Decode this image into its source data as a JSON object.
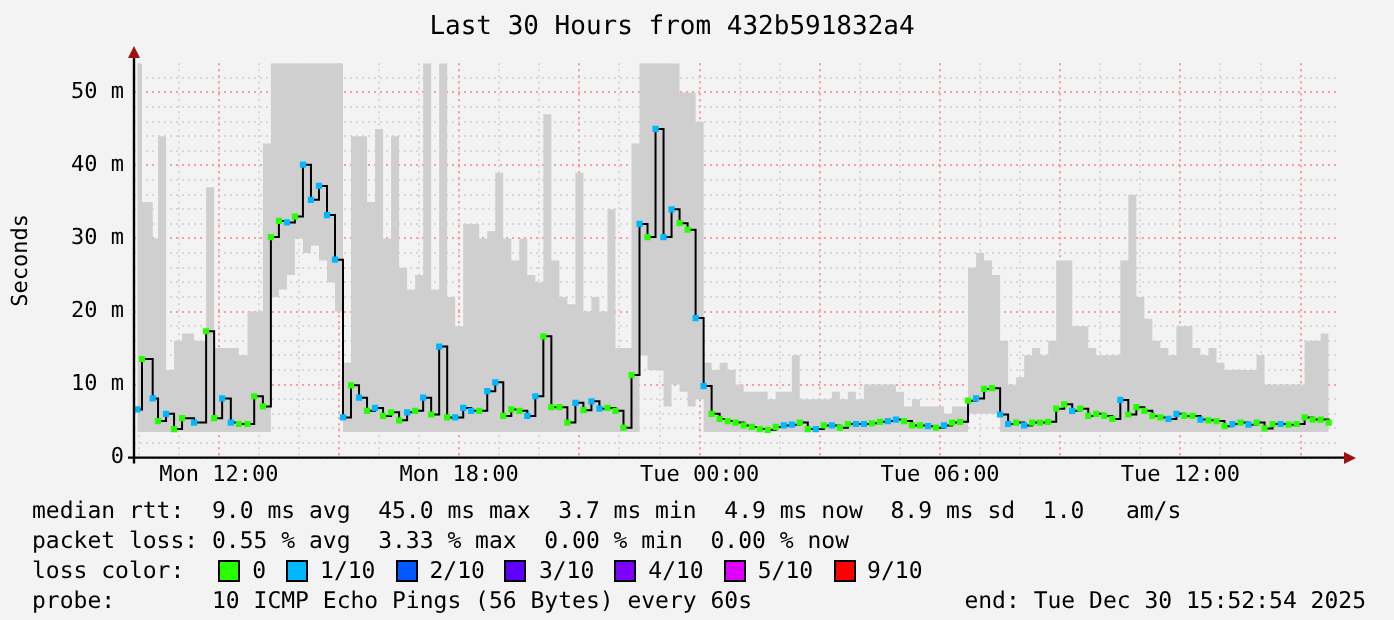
{
  "chart_data": {
    "type": "step",
    "title": "Last 30 Hours from 432b591832a4",
    "ylabel": "Seconds",
    "legend_title": "loss color:",
    "legend": "bottom",
    "grid": true,
    "marker": "square",
    "xlim": [
      "2025-12-29T09:53",
      "2025-12-30T15:53"
    ],
    "xticks": [
      {
        "value": "2025-12-29T10:00",
        "label": null
      },
      {
        "value": "2025-12-29T11:00",
        "label": null
      },
      {
        "value": "2025-12-29T12:00",
        "label": "Mon 12:00"
      },
      {
        "value": "2025-12-29T13:00",
        "label": null
      },
      {
        "value": "2025-12-29T14:00",
        "label": null
      },
      {
        "value": "2025-12-29T15:00",
        "label": null
      },
      {
        "value": "2025-12-29T16:00",
        "label": null
      },
      {
        "value": "2025-12-29T17:00",
        "label": null
      },
      {
        "value": "2025-12-29T18:00",
        "label": "Mon 18:00"
      },
      {
        "value": "2025-12-29T19:00",
        "label": null
      },
      {
        "value": "2025-12-29T20:00",
        "label": null
      },
      {
        "value": "2025-12-29T21:00",
        "label": null
      },
      {
        "value": "2025-12-29T22:00",
        "label": null
      },
      {
        "value": "2025-12-29T23:00",
        "label": null
      },
      {
        "value": "2025-12-30T00:00",
        "label": "Tue 00:00"
      },
      {
        "value": "2025-12-30T01:00",
        "label": null
      },
      {
        "value": "2025-12-30T02:00",
        "label": null
      },
      {
        "value": "2025-12-30T03:00",
        "label": null
      },
      {
        "value": "2025-12-30T04:00",
        "label": null
      },
      {
        "value": "2025-12-30T05:00",
        "label": null
      },
      {
        "value": "2025-12-30T06:00",
        "label": "Tue 06:00"
      },
      {
        "value": "2025-12-30T07:00",
        "label": null
      },
      {
        "value": "2025-12-30T08:00",
        "label": null
      },
      {
        "value": "2025-12-30T09:00",
        "label": null
      },
      {
        "value": "2025-12-30T10:00",
        "label": null
      },
      {
        "value": "2025-12-30T11:00",
        "label": null
      },
      {
        "value": "2025-12-30T12:00",
        "label": "Tue 12:00"
      },
      {
        "value": "2025-12-30T13:00",
        "label": null
      },
      {
        "value": "2025-12-30T14:00",
        "label": null
      },
      {
        "value": "2025-12-30T15:00",
        "label": null
      }
    ],
    "ylim": [
      0,
      54
    ],
    "yticks": [
      {
        "value": 0,
        "label": "0"
      },
      {
        "value": 2,
        "label": null
      },
      {
        "value": 4,
        "label": null
      },
      {
        "value": 6,
        "label": null
      },
      {
        "value": 8,
        "label": null
      },
      {
        "value": 10,
        "label": "10 m"
      },
      {
        "value": 12,
        "label": null
      },
      {
        "value": 14,
        "label": null
      },
      {
        "value": 16,
        "label": null
      },
      {
        "value": 18,
        "label": null
      },
      {
        "value": 20,
        "label": "20 m"
      },
      {
        "value": 22,
        "label": null
      },
      {
        "value": 24,
        "label": null
      },
      {
        "value": 26,
        "label": null
      },
      {
        "value": 28,
        "label": null
      },
      {
        "value": 30,
        "label": "30 m"
      },
      {
        "value": 32,
        "label": null
      },
      {
        "value": 34,
        "label": null
      },
      {
        "value": 36,
        "label": null
      },
      {
        "value": 38,
        "label": null
      },
      {
        "value": 40,
        "label": "40 m"
      },
      {
        "value": 42,
        "label": null
      },
      {
        "value": 44,
        "label": null
      },
      {
        "value": 46,
        "label": null
      },
      {
        "value": 48,
        "label": null
      },
      {
        "value": 50,
        "label": "50 m"
      },
      {
        "value": 52,
        "label": null
      }
    ],
    "annotations": [
      "median rtt:  9.0 ms avg  45.0 ms max  3.7 ms min  4.9 ms now  8.9 ms sd  1.0   am/s",
      "packet loss: 0.55 % avg  3.33 % max  0.00 % min  0.00 % now",
      "probe:       10 ICMP Echo Pings (56 Bytes) every 60s",
      "end: Tue Dec 30 15:52:54 2025"
    ],
    "series": [
      {
        "color": "#000000",
        "x": [
          "2025-12-29T09:58",
          "2025-12-29T10:05",
          "2025-12-29T10:21",
          "2025-12-29T10:29",
          "2025-12-29T10:41",
          "2025-12-29T10:53",
          "2025-12-29T11:05",
          "2025-12-29T11:23",
          "2025-12-29T11:41",
          "2025-12-29T11:53",
          "2025-12-29T12:05",
          "2025-12-29T12:18",
          "2025-12-29T12:30",
          "2025-12-29T12:43",
          "2025-12-29T12:53",
          "2025-12-29T13:06",
          "2025-12-29T13:18",
          "2025-12-29T13:30",
          "2025-12-29T13:42",
          "2025-12-29T13:54",
          "2025-12-29T14:06",
          "2025-12-29T14:18",
          "2025-12-29T14:30",
          "2025-12-29T14:42",
          "2025-12-29T14:54",
          "2025-12-29T15:06",
          "2025-12-29T15:18",
          "2025-12-29T15:30",
          "2025-12-29T15:42",
          "2025-12-29T15:54",
          "2025-12-29T16:06",
          "2025-12-29T16:18",
          "2025-12-29T16:30",
          "2025-12-29T16:42",
          "2025-12-29T16:54",
          "2025-12-29T17:06",
          "2025-12-29T17:18",
          "2025-12-29T17:30",
          "2025-12-29T17:42",
          "2025-12-29T17:54",
          "2025-12-29T18:06",
          "2025-12-29T18:18",
          "2025-12-29T18:30",
          "2025-12-29T18:42",
          "2025-12-29T18:54",
          "2025-12-29T19:06",
          "2025-12-29T19:18",
          "2025-12-29T19:30",
          "2025-12-29T19:42",
          "2025-12-29T19:54",
          "2025-12-29T20:06",
          "2025-12-29T20:18",
          "2025-12-29T20:30",
          "2025-12-29T20:42",
          "2025-12-29T20:54",
          "2025-12-29T21:06",
          "2025-12-29T21:18",
          "2025-12-29T21:30",
          "2025-12-29T21:42",
          "2025-12-29T21:54",
          "2025-12-29T22:06",
          "2025-12-29T22:18",
          "2025-12-29T22:30",
          "2025-12-29T22:42",
          "2025-12-29T22:54",
          "2025-12-29T23:06",
          "2025-12-29T23:18",
          "2025-12-29T23:30",
          "2025-12-29T23:42",
          "2025-12-29T23:54",
          "2025-12-30T00:06",
          "2025-12-30T00:18",
          "2025-12-30T00:30",
          "2025-12-30T00:42",
          "2025-12-30T00:54",
          "2025-12-30T01:06",
          "2025-12-30T01:18",
          "2025-12-30T01:30",
          "2025-12-30T01:42",
          "2025-12-30T01:54",
          "2025-12-30T02:06",
          "2025-12-30T02:18",
          "2025-12-30T02:30",
          "2025-12-30T02:42",
          "2025-12-30T02:54",
          "2025-12-30T03:06",
          "2025-12-30T03:18",
          "2025-12-30T03:30",
          "2025-12-30T03:42",
          "2025-12-30T03:54",
          "2025-12-30T04:06",
          "2025-12-30T04:18",
          "2025-12-30T04:30",
          "2025-12-30T04:42",
          "2025-12-30T04:54",
          "2025-12-30T05:06",
          "2025-12-30T05:18",
          "2025-12-30T05:30",
          "2025-12-30T05:42",
          "2025-12-30T05:54",
          "2025-12-30T06:06",
          "2025-12-30T06:18",
          "2025-12-30T06:30",
          "2025-12-30T06:42",
          "2025-12-30T06:54",
          "2025-12-30T07:06",
          "2025-12-30T07:18",
          "2025-12-30T07:30",
          "2025-12-30T07:42",
          "2025-12-30T07:54",
          "2025-12-30T08:06",
          "2025-12-30T08:18",
          "2025-12-30T08:30",
          "2025-12-30T08:42",
          "2025-12-30T08:54",
          "2025-12-30T09:06",
          "2025-12-30T09:18",
          "2025-12-30T09:30",
          "2025-12-30T09:42",
          "2025-12-30T09:54",
          "2025-12-30T10:06",
          "2025-12-30T10:18",
          "2025-12-30T10:30",
          "2025-12-30T10:42",
          "2025-12-30T10:54",
          "2025-12-30T11:06",
          "2025-12-30T11:18",
          "2025-12-30T11:30",
          "2025-12-30T11:42",
          "2025-12-30T11:54",
          "2025-12-30T12:06",
          "2025-12-30T12:18",
          "2025-12-30T12:30",
          "2025-12-30T12:42",
          "2025-12-30T12:54",
          "2025-12-30T13:06",
          "2025-12-30T13:18",
          "2025-12-30T13:30",
          "2025-12-30T13:42",
          "2025-12-30T13:54",
          "2025-12-30T14:06",
          "2025-12-30T14:18",
          "2025-12-30T14:30",
          "2025-12-30T14:42",
          "2025-12-30T14:54",
          "2025-12-30T15:06",
          "2025-12-30T15:18",
          "2025-12-30T15:30",
          "2025-12-30T15:42"
        ],
        "values": [
          6.6,
          13.5,
          8.1,
          5,
          6,
          3.9,
          5.4,
          4.8,
          17.3,
          5.4,
          8.1,
          4.8,
          4.6,
          4.6,
          8.4,
          7,
          30.2,
          32.4,
          32.2,
          33,
          40.1,
          35.3,
          37.2,
          33.2,
          27.1,
          5.5,
          9.9,
          8.2,
          6.4,
          6.8,
          5.7,
          6.2,
          5.1,
          6.2,
          6.4,
          8.2,
          5.9,
          15.2,
          5.5,
          5.5,
          6.8,
          6.4,
          6.4,
          9.1,
          10.3,
          5.7,
          6.6,
          6.4,
          5.7,
          8.4,
          16.6,
          6.9,
          6.9,
          4.8,
          7.5,
          6.5,
          7.7,
          6.7,
          6.8,
          6.4,
          4.1,
          11.3,
          32,
          30.2,
          45,
          30.2,
          34,
          32.1,
          31.2,
          19.1,
          9.8,
          6,
          5.3,
          5,
          4.8,
          4.4,
          4.2,
          3.9,
          3.8,
          4.2,
          4.4,
          4.5,
          4.8,
          3.9,
          3.9,
          4.4,
          4.4,
          4.1,
          4.6,
          4.6,
          4.6,
          4.7,
          4.9,
          5,
          5.2,
          5,
          4.4,
          4.4,
          4.3,
          4.1,
          4.4,
          4.8,
          4.9,
          7.8,
          8.1,
          9.4,
          9.5,
          5.9,
          4.6,
          4.8,
          4.4,
          4.8,
          4.8,
          4.9,
          6.7,
          7.3,
          6.4,
          6.7,
          5.7,
          6,
          5.7,
          5.3,
          7.9,
          5.9,
          6.9,
          6.4,
          5.7,
          5.5,
          5.3,
          6,
          5.7,
          5.7,
          5.2,
          5.1,
          5,
          4.3,
          4.6,
          4.8,
          4.5,
          4.8,
          4,
          4.6,
          4.6,
          4.5,
          4.6,
          5.5,
          5.2,
          5.2,
          4.8
        ],
        "colors": [
          "#00b8ff",
          "#26ff00",
          "#00b8ff",
          "#26ff00",
          "#00b8ff",
          "#26ff00",
          "#26ff00",
          "#00b8ff",
          "#26ff00",
          "#26ff00",
          "#00b8ff",
          "#00b8ff",
          "#26ff00",
          "#26ff00",
          "#26ff00",
          "#26ff00",
          "#26ff00",
          "#26ff00",
          "#00b8ff",
          "#26ff00",
          "#00b8ff",
          "#00b8ff",
          "#00b8ff",
          "#00b8ff",
          "#00b8ff",
          "#00b8ff",
          "#26ff00",
          "#00b8ff",
          "#26ff00",
          "#00b8ff",
          "#26ff00",
          "#26ff00",
          "#26ff00",
          "#00b8ff",
          "#26ff00",
          "#00b8ff",
          "#26ff00",
          "#00b8ff",
          "#26ff00",
          "#00b8ff",
          "#00b8ff",
          "#00b8ff",
          "#26ff00",
          "#00b8ff",
          "#00b8ff",
          "#26ff00",
          "#26ff00",
          "#26ff00",
          "#00b8ff",
          "#00b8ff",
          "#26ff00",
          "#26ff00",
          "#26ff00",
          "#26ff00",
          "#00b8ff",
          "#26ff00",
          "#00b8ff",
          "#00b8ff",
          "#26ff00",
          "#26ff00",
          "#26ff00",
          "#26ff00",
          "#00b8ff",
          "#26ff00",
          "#00b8ff",
          "#00b8ff",
          "#00b8ff",
          "#26ff00",
          "#26ff00",
          "#00b8ff",
          "#00b8ff",
          "#26ff00",
          "#26ff00",
          "#26ff00",
          "#26ff00",
          "#26ff00",
          "#26ff00",
          "#26ff00",
          "#26ff00",
          "#26ff00",
          "#00b8ff",
          "#00b8ff",
          "#26ff00",
          "#26ff00",
          "#00b8ff",
          "#26ff00",
          "#00b8ff",
          "#26ff00",
          "#26ff00",
          "#00b8ff",
          "#00b8ff",
          "#26ff00",
          "#26ff00",
          "#00b8ff",
          "#00b8ff",
          "#26ff00",
          "#26ff00",
          "#26ff00",
          "#00b8ff",
          "#26ff00",
          "#00b8ff",
          "#26ff00",
          "#26ff00",
          "#26ff00",
          "#00b8ff",
          "#26ff00",
          "#26ff00",
          "#00b8ff",
          "#00b8ff",
          "#26ff00",
          "#00b8ff",
          "#26ff00",
          "#26ff00",
          "#26ff00",
          "#26ff00",
          "#26ff00",
          "#00b8ff",
          "#26ff00",
          "#26ff00",
          "#26ff00",
          "#26ff00",
          "#26ff00",
          "#00b8ff",
          "#26ff00",
          "#26ff00",
          "#26ff00",
          "#26ff00",
          "#26ff00",
          "#00b8ff",
          "#00b8ff",
          "#26ff00",
          "#26ff00",
          "#00b8ff",
          "#26ff00",
          "#26ff00",
          "#26ff00",
          "#00b8ff",
          "#26ff00",
          "#00b8ff",
          "#26ff00",
          "#26ff00",
          "#26ff00",
          "#00b8ff",
          "#26ff00",
          "#26ff00",
          "#26ff00",
          "#26ff00",
          "#26ff00",
          "#26ff00"
        ],
        "lower": [
          3.5,
          3.5,
          3.5,
          3.5,
          3.5,
          3.5,
          3.5,
          3.5,
          3.5,
          3.5,
          3.5,
          3.5,
          3.5,
          3.5,
          3.5,
          3.5,
          22,
          23,
          25,
          30,
          28,
          29,
          27,
          24,
          20,
          3.5,
          3.5,
          3.5,
          3.5,
          3.5,
          3.5,
          3.5,
          3.5,
          3.5,
          3.5,
          3.5,
          3.5,
          3.5,
          3.5,
          3.5,
          3.5,
          3.5,
          3.5,
          3.5,
          3.5,
          3.5,
          3.5,
          3.5,
          3.5,
          3.5,
          3.5,
          3.5,
          3.5,
          3.5,
          3.5,
          3.5,
          3.5,
          3.5,
          3.5,
          3.5,
          3.5,
          3.5,
          14,
          12,
          12,
          7,
          10,
          9,
          7,
          8,
          3.5,
          3.5,
          3.5,
          3.5,
          3.5,
          3.5,
          3.5,
          3.5,
          3.5,
          3.5,
          3.5,
          3.5,
          3.5,
          3.5,
          3.5,
          3.5,
          3.5,
          3.5,
          3.5,
          3.5,
          3.5,
          3.5,
          3.5,
          3.5,
          3.5,
          3.5,
          3.5,
          3.5,
          3.5,
          3.5,
          3.5,
          3.5,
          3.5,
          6,
          6,
          6,
          6,
          3.5,
          3.5,
          3.5,
          3.5,
          3.5,
          3.5,
          3.5,
          3.5,
          3.5,
          3.5,
          3.5,
          3.5,
          3.5,
          3.5,
          3.5,
          3.5,
          3.5,
          3.5,
          3.5,
          3.5,
          3.5,
          3.5,
          3.5,
          3.5,
          3.5,
          3.5,
          3.5,
          3.5,
          3.5,
          3.5,
          3.5,
          3.5,
          3.5,
          3.5,
          3.5,
          3.5,
          3.5,
          3.5,
          3.5,
          3.5,
          3.5,
          3.5
        ],
        "upper": [
          54,
          35,
          30,
          44,
          12,
          16,
          17,
          16,
          37,
          15,
          15,
          15,
          14,
          20,
          20,
          43,
          54,
          54,
          54,
          54,
          54,
          54,
          54,
          54,
          54,
          13,
          44,
          44,
          35,
          45,
          30,
          44,
          26,
          23,
          25,
          54,
          23,
          54,
          22,
          18,
          32,
          32,
          30,
          31,
          39,
          30,
          27,
          30,
          25,
          24,
          47,
          27,
          22,
          21,
          39,
          20,
          22,
          20,
          34,
          15,
          15,
          43,
          54,
          54,
          54,
          54,
          54,
          50,
          50,
          46,
          13,
          12,
          13,
          12,
          10,
          9,
          9,
          9,
          8,
          9,
          9,
          14,
          8,
          8,
          8,
          8,
          9,
          8,
          9,
          8,
          10,
          10,
          10,
          10,
          9,
          7,
          8,
          7,
          7,
          7,
          6,
          7,
          7,
          26,
          28,
          27,
          25,
          16,
          10,
          11,
          14,
          15,
          14,
          16,
          27,
          27,
          18,
          18,
          15,
          14,
          14,
          14,
          27,
          36,
          22,
          19,
          16,
          15,
          14,
          18,
          18,
          15,
          14,
          15,
          13,
          12,
          12,
          12,
          12,
          14,
          10,
          10,
          10,
          10,
          10,
          16,
          16,
          17,
          14
        ]
      },
      {
        "name": "0",
        "color": "#26ff00"
      },
      {
        "name": "1/10",
        "color": "#00b8ff"
      },
      {
        "name": "2/10",
        "color": "#0059ff"
      },
      {
        "name": "3/10",
        "color": "#5e00ff"
      },
      {
        "name": "4/10",
        "color": "#7e00ff"
      },
      {
        "name": "5/10",
        "color": "#dd00ff"
      },
      {
        "name": "9/10",
        "color": "#ff0000"
      }
    ]
  }
}
